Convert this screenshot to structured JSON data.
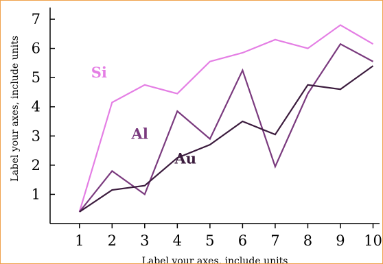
{
  "chart_data": {
    "type": "line",
    "title": "",
    "xlabel": "Label your axes, include units",
    "ylabel": "Label your axes, include units",
    "xlim": [
      0.1,
      10.2
    ],
    "ylim": [
      0,
      7.4
    ],
    "xticks": [
      1,
      2,
      3,
      4,
      5,
      6,
      7,
      8,
      9,
      10
    ],
    "yticks": [
      1,
      2,
      3,
      4,
      5,
      6,
      7
    ],
    "grid": false,
    "legend": "none",
    "x": [
      1,
      2,
      3,
      4,
      5,
      6,
      7,
      8,
      9,
      10
    ],
    "series": [
      {
        "name": "Si",
        "color": "#e47ee4",
        "values": [
          0.4,
          4.15,
          4.75,
          4.45,
          5.55,
          5.85,
          6.3,
          6.0,
          6.8,
          6.15
        ],
        "label_at": [
          1.6,
          5.0
        ]
      },
      {
        "name": "Al",
        "color": "#7a3a7e",
        "values": [
          0.4,
          1.8,
          1.0,
          3.85,
          2.9,
          5.25,
          1.95,
          4.45,
          6.15,
          5.55
        ],
        "label_at": [
          2.85,
          2.9
        ]
      },
      {
        "name": "Au",
        "color": "#3b1b3d",
        "values": [
          0.4,
          1.15,
          1.3,
          2.25,
          2.7,
          3.5,
          3.05,
          4.75,
          4.6,
          5.4
        ],
        "label_at": [
          4.25,
          2.05
        ]
      }
    ]
  }
}
